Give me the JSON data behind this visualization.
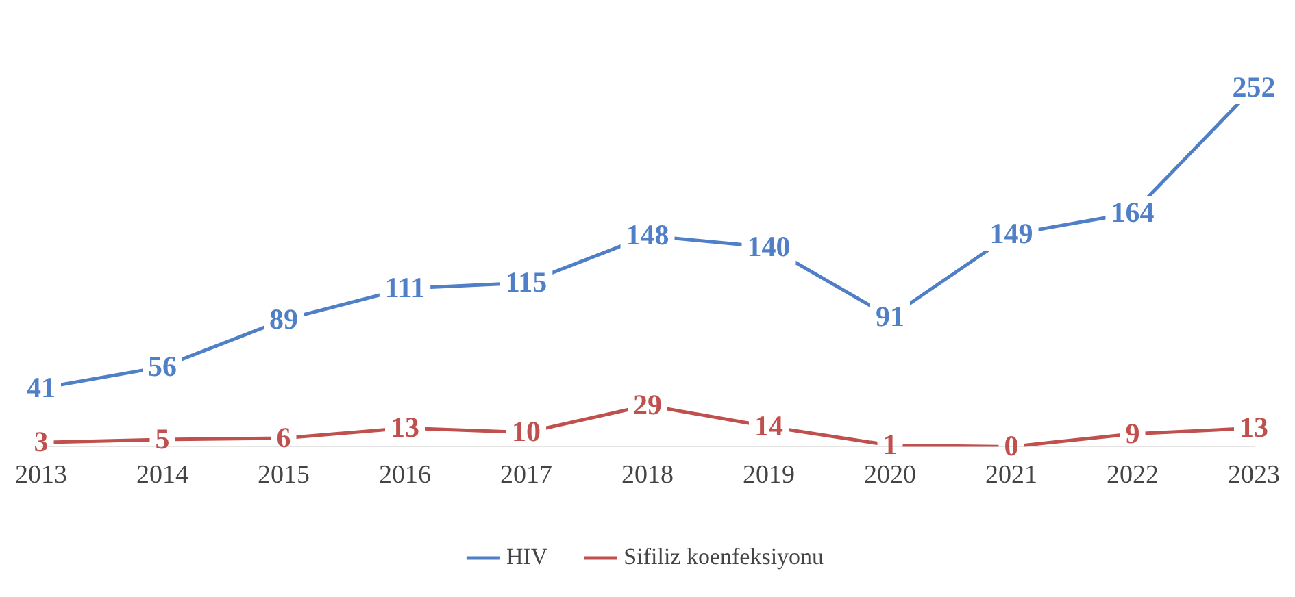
{
  "chart_data": {
    "type": "line",
    "categories": [
      "2013",
      "2014",
      "2015",
      "2016",
      "2017",
      "2018",
      "2019",
      "2020",
      "2021",
      "2022",
      "2023"
    ],
    "series": [
      {
        "name": "HIV",
        "color": "#4f7fc6",
        "values": [
          41,
          56,
          89,
          111,
          115,
          148,
          140,
          91,
          149,
          164,
          252
        ]
      },
      {
        "name": "Sifiliz koenfeksiyonu",
        "color": "#c0504d",
        "values": [
          3,
          5,
          6,
          13,
          10,
          29,
          14,
          1,
          0,
          9,
          13
        ]
      }
    ],
    "data_labels": true,
    "legend": "bottom",
    "line_style": "solid",
    "grid": false
  }
}
